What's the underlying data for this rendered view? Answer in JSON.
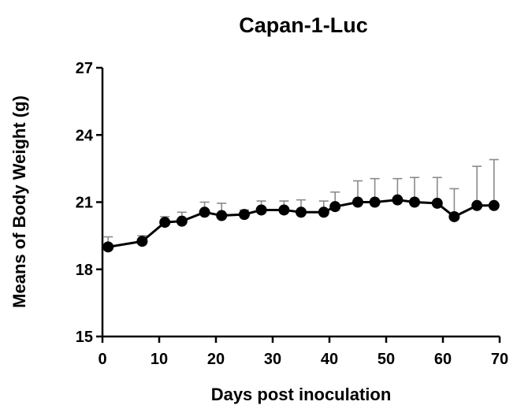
{
  "chart_data": {
    "type": "line",
    "title": "Capan-1-Luc",
    "xlabel": "Days post inoculation",
    "ylabel": "Means of Body Weight (g)",
    "xlim": [
      0,
      70
    ],
    "ylim": [
      15,
      27
    ],
    "xticks": [
      "0",
      "10",
      "20",
      "30",
      "40",
      "50",
      "60",
      "70"
    ],
    "yticks": [
      "15",
      "18",
      "21",
      "24",
      "27"
    ],
    "grid": false,
    "series": [
      {
        "x": [
          1,
          7,
          11,
          14,
          18,
          21,
          25,
          28,
          32,
          35,
          39,
          41,
          45,
          48,
          52,
          55,
          59,
          62,
          66,
          69
        ],
        "y": [
          19.0,
          19.25,
          20.1,
          20.15,
          20.55,
          20.4,
          20.45,
          20.65,
          20.65,
          20.55,
          20.55,
          20.8,
          21.0,
          21.0,
          21.1,
          21.0,
          20.95,
          20.35,
          20.85,
          20.85
        ],
        "error_upper": [
          0.45,
          0.25,
          0.25,
          0.4,
          0.45,
          0.55,
          0.2,
          0.4,
          0.4,
          0.55,
          0.5,
          0.65,
          0.95,
          1.05,
          0.95,
          1.1,
          1.15,
          1.25,
          1.75,
          2.05
        ]
      }
    ]
  }
}
